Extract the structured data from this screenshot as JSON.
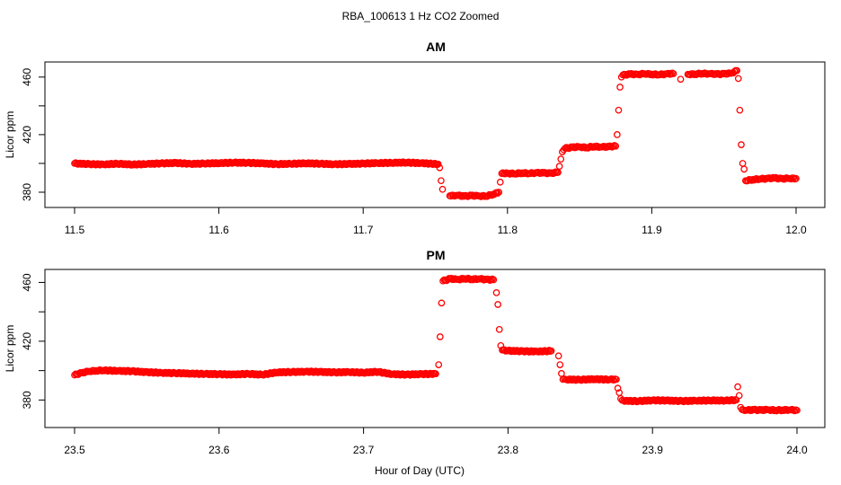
{
  "figure": {
    "title": "RBA_100613  1 Hz CO2 Zoomed",
    "xlabel": "Hour of Day (UTC)"
  },
  "chart_data": [
    {
      "type": "scatter",
      "title": "AM",
      "xlabel": "",
      "ylabel": "Licor ppm",
      "xlim": [
        11.5,
        12.0
      ],
      "ylim": [
        375,
        468
      ],
      "xticks": [
        11.5,
        11.6,
        11.7,
        11.8,
        11.9,
        12.0
      ],
      "xtick_labels": [
        "11.5",
        "11.6",
        "11.7",
        "11.8",
        "11.9",
        "12.0"
      ],
      "yticks": [
        380,
        420,
        460
      ],
      "ytick_labels": [
        "380",
        "420",
        "460"
      ],
      "grid": false,
      "marker": "open-circle",
      "color": "#ff0000",
      "series": [
        {
          "x": [
            11.5,
            11.51,
            11.52,
            11.53,
            11.54,
            11.55,
            11.56,
            11.57,
            11.58,
            11.59,
            11.6,
            11.61,
            11.62,
            11.63,
            11.64,
            11.65,
            11.66,
            11.67,
            11.68,
            11.69,
            11.7,
            11.71,
            11.72,
            11.73,
            11.74,
            11.752,
            11.753,
            11.754,
            11.755,
            11.76,
            11.765,
            11.77,
            11.775,
            11.78,
            11.785,
            11.79,
            11.794,
            11.795,
            11.796,
            11.8,
            11.805,
            11.81,
            11.815,
            11.82,
            11.825,
            11.83,
            11.835,
            11.836,
            11.837,
            11.838,
            11.84,
            11.845,
            11.85,
            11.855,
            11.86,
            11.865,
            11.87,
            11.875,
            11.876,
            11.877,
            11.878,
            11.879,
            11.88,
            11.885,
            11.89,
            11.895,
            11.9,
            11.905,
            11.91,
            11.915,
            11.92,
            11.925,
            11.93,
            11.935,
            11.94,
            11.945,
            11.95,
            11.955,
            11.959,
            11.96,
            11.961,
            11.962,
            11.963,
            11.964,
            11.965,
            11.97,
            11.975,
            11.98,
            11.985,
            11.99,
            11.995,
            12.0
          ],
          "y": [
            400,
            399.5,
            399.3,
            399.8,
            399.2,
            399.6,
            400.0,
            400.3,
            399.7,
            399.9,
            400.2,
            400.5,
            400.4,
            400.0,
            399.5,
            399.7,
            400.1,
            399.8,
            399.4,
            399.6,
            399.9,
            400.2,
            400.4,
            400.6,
            400.2,
            399.5,
            397,
            388,
            382,
            377.5,
            377.8,
            377.2,
            377.6,
            377.4,
            377.3,
            378.5,
            380,
            387,
            393,
            393.2,
            392.8,
            393.4,
            393.0,
            393.5,
            393.3,
            393.2,
            393.8,
            398,
            403,
            408,
            410.5,
            411.2,
            411.5,
            411.0,
            411.8,
            411.4,
            411.6,
            412.0,
            420,
            437,
            453,
            460,
            461.5,
            462.0,
            461.8,
            462.3,
            462.0,
            461.7,
            462.2,
            462.4,
            458.5,
            461.9,
            462.1,
            462.5,
            462.3,
            462.0,
            462.2,
            462.6,
            464.5,
            459,
            437,
            413,
            400,
            396,
            388,
            388.8,
            389.2,
            389.5,
            389.8,
            389.4,
            389.6,
            389.5
          ]
        }
      ]
    },
    {
      "type": "scatter",
      "title": "PM",
      "xlabel": "",
      "ylabel": "Licor ppm",
      "xlim": [
        23.5,
        24.0
      ],
      "ylim": [
        368,
        467
      ],
      "xticks": [
        23.5,
        23.6,
        23.7,
        23.8,
        23.9,
        24.0
      ],
      "xtick_labels": [
        "23.5",
        "23.6",
        "23.7",
        "23.8",
        "23.9",
        "24.0"
      ],
      "yticks": [
        380,
        420,
        460
      ],
      "ytick_labels": [
        "380",
        "420",
        "460"
      ],
      "grid": false,
      "marker": "open-circle",
      "color": "#ff0000",
      "series": [
        {
          "x": [
            23.5,
            23.505,
            23.51,
            23.515,
            23.52,
            23.53,
            23.54,
            23.55,
            23.56,
            23.57,
            23.58,
            23.59,
            23.6,
            23.61,
            23.62,
            23.63,
            23.64,
            23.65,
            23.66,
            23.67,
            23.68,
            23.69,
            23.7,
            23.71,
            23.72,
            23.73,
            23.74,
            23.75,
            23.752,
            23.753,
            23.754,
            23.755,
            23.76,
            23.765,
            23.77,
            23.775,
            23.78,
            23.785,
            23.79,
            23.792,
            23.793,
            23.794,
            23.795,
            23.796,
            23.8,
            23.81,
            23.82,
            23.83,
            23.835,
            23.836,
            23.837,
            23.838,
            23.84,
            23.85,
            23.86,
            23.87,
            23.875,
            23.876,
            23.877,
            23.878,
            23.88,
            23.89,
            23.9,
            23.91,
            23.92,
            23.93,
            23.94,
            23.95,
            23.958,
            23.959,
            23.96,
            23.961,
            23.962,
            23.963,
            23.965,
            23.97,
            23.975,
            23.98,
            23.985,
            23.99,
            23.995,
            24.0
          ],
          "y": [
            397,
            398.5,
            399.5,
            400,
            400.2,
            399.8,
            399.6,
            398.9,
            398.5,
            398.3,
            398.0,
            397.7,
            397.6,
            397.3,
            397.8,
            397.2,
            398.8,
            399.0,
            399.3,
            399.1,
            398.8,
            399.0,
            398.6,
            399.2,
            397.5,
            397.3,
            397.6,
            397.8,
            404,
            423,
            446,
            461,
            462.5,
            462.0,
            462.6,
            462.2,
            462.4,
            462.0,
            461.8,
            453,
            445,
            428,
            417,
            414,
            413.5,
            413.2,
            413.0,
            413.4,
            410,
            404,
            398,
            394,
            394.0,
            393.8,
            394.2,
            393.9,
            394.0,
            388,
            385,
            381,
            379.5,
            379.2,
            379.8,
            379.6,
            379.3,
            379.5,
            379.7,
            379.6,
            380.0,
            389,
            383,
            375,
            373.5,
            373.2,
            373.0,
            373.3,
            373.1,
            373.4,
            373.0,
            373.2,
            373.3,
            373.0
          ]
        }
      ]
    }
  ]
}
